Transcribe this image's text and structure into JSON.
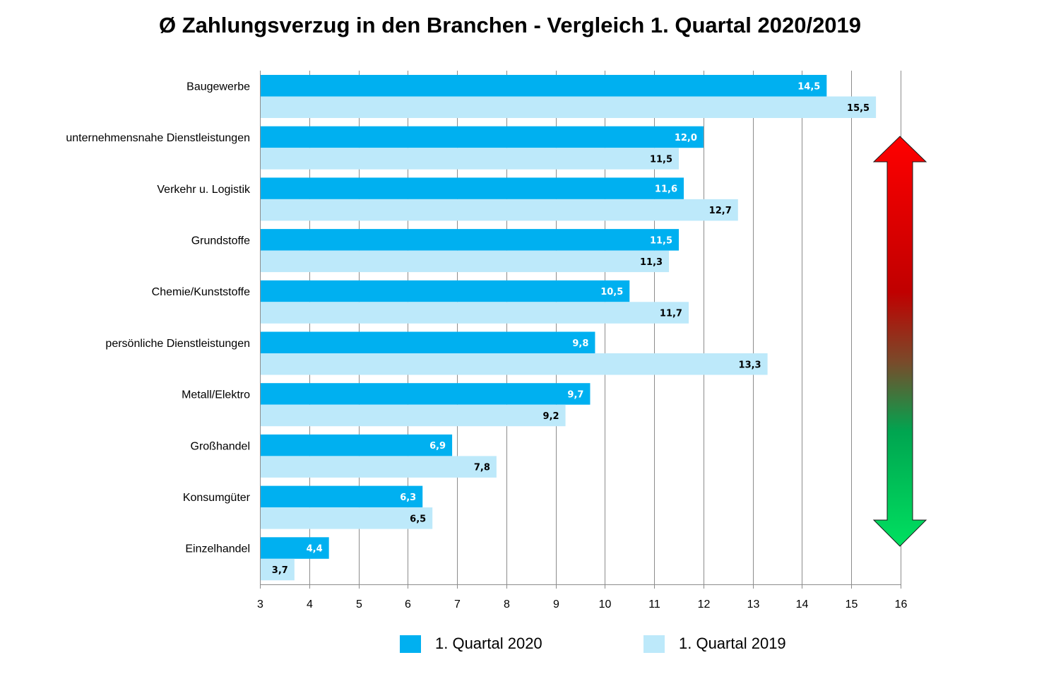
{
  "chart_data": {
    "type": "bar",
    "orientation": "horizontal",
    "title": "Ø Zahlungsverzug in den Branchen - Vergleich 1. Quartal 2020/2019",
    "categories": [
      "Baugewerbe",
      "unternehmensnahe Dienstleistungen",
      "Verkehr u. Logistik",
      "Grundstoffe",
      "Chemie/Kunststoffe",
      "persönliche Dienstleistungen",
      "Metall/Elektro",
      "Großhandel",
      "Konsumgüter",
      "Einzelhandel"
    ],
    "series": [
      {
        "name": "1. Quartal 2020",
        "color": "#00B0F0",
        "label_color": "#ffffff",
        "values": [
          14.5,
          12.0,
          11.6,
          11.5,
          10.5,
          9.8,
          9.7,
          6.9,
          6.3,
          4.4
        ],
        "labels": [
          "14,5",
          "12,0",
          "11,6",
          "11,5",
          "10,5",
          "9,8",
          "9,7",
          "6,9",
          "6,3",
          "4,4"
        ]
      },
      {
        "name": "1. Quartal 2019",
        "color": "#BDE9FA",
        "label_color": "#000000",
        "values": [
          15.5,
          11.5,
          12.7,
          11.3,
          11.7,
          13.3,
          9.2,
          7.8,
          6.5,
          3.7
        ],
        "labels": [
          "15,5",
          "11,5",
          "12,7",
          "11,3",
          "11,7",
          "13,3",
          "9,2",
          "7,8",
          "6,5",
          "3,7"
        ]
      }
    ],
    "xlim": [
      3,
      16
    ],
    "xticks": [
      "3",
      "4",
      "5",
      "6",
      "7",
      "8",
      "9",
      "10",
      "11",
      "12",
      "13",
      "14",
      "15",
      "16"
    ],
    "grid": "vertical",
    "legend_position": "bottom",
    "annotation": "gradient double arrow (red top, green bottom)",
    "arrow_colors": {
      "top": "#FF0000",
      "middle_dark": "#C00000",
      "middle_green": "#00A550",
      "bottom": "#00E060"
    }
  }
}
